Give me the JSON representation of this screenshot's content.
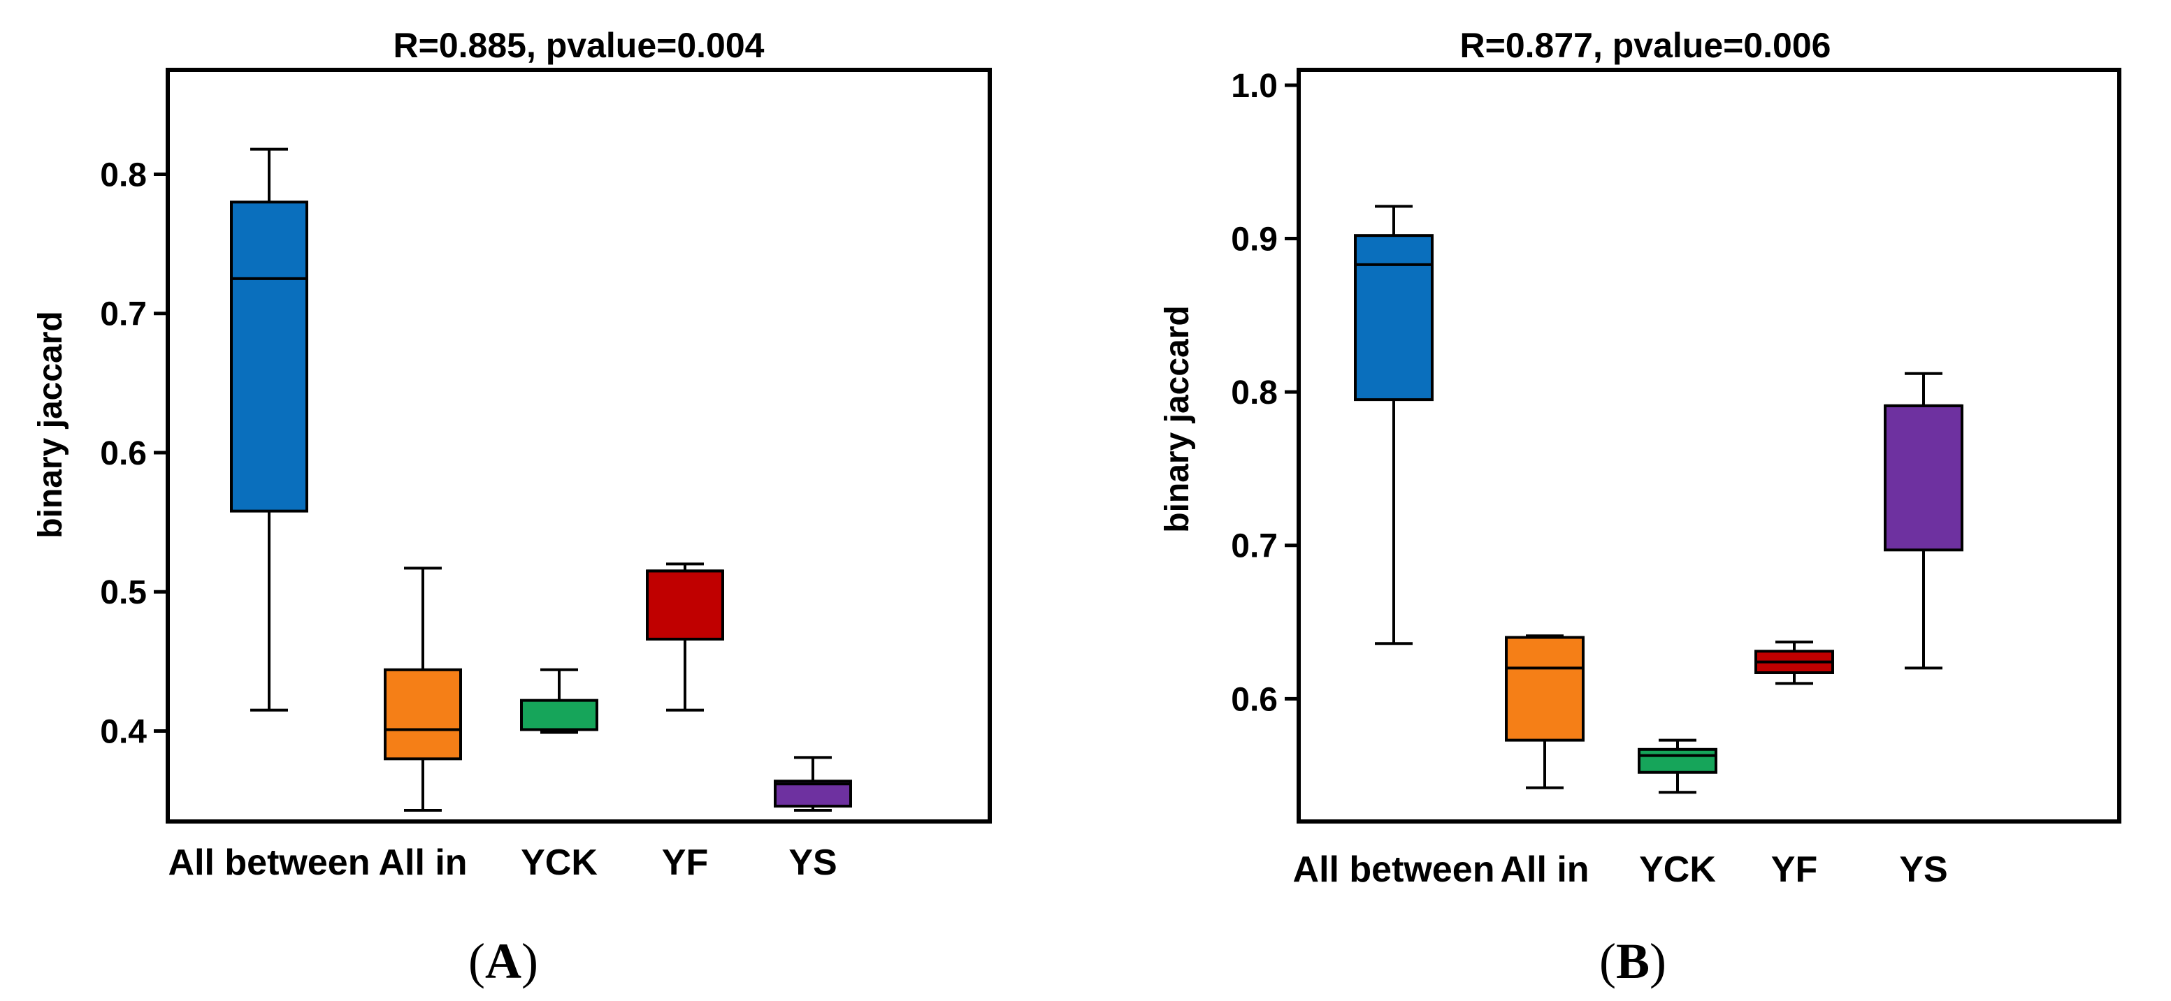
{
  "colors": {
    "All between": "#0a6fbd",
    "All in": "#f57f17",
    "YCK": "#16a55a",
    "YF": "#c00000",
    "YS": "#6e31a0"
  },
  "chart_data": [
    {
      "type": "box",
      "panel_label": "A",
      "title": "R=0.885, pvalue=0.004",
      "xlabel": "",
      "ylabel": "binary jaccard",
      "ylim": [
        0.335,
        0.875
      ],
      "yticks": [
        "0.4",
        "0.5",
        "0.6",
        "0.7",
        "0.8"
      ],
      "categories": [
        "All between",
        "All in",
        "YCK",
        "YF",
        "YS"
      ],
      "boxes": [
        {
          "name": "All between",
          "min": 0.415,
          "q1": 0.558,
          "median": 0.725,
          "q3": 0.78,
          "max": 0.818
        },
        {
          "name": "All in",
          "min": 0.343,
          "q1": 0.38,
          "median": 0.401,
          "q3": 0.444,
          "max": 0.517
        },
        {
          "name": "YCK",
          "min": 0.399,
          "q1": 0.401,
          "median": 0.401,
          "q3": 0.422,
          "max": 0.444
        },
        {
          "name": "YF",
          "min": 0.415,
          "q1": 0.466,
          "median": 0.515,
          "q3": 0.515,
          "max": 0.52
        },
        {
          "name": "YS",
          "min": 0.343,
          "q1": 0.346,
          "median": 0.362,
          "q3": 0.364,
          "max": 0.381
        }
      ]
    },
    {
      "type": "box",
      "panel_label": "B",
      "title": "R=0.877, pvalue=0.006",
      "xlabel": "",
      "ylabel": "binary jaccard",
      "ylim": [
        0.52,
        1.01
      ],
      "yticks": [
        "0.6",
        "0.7",
        "0.8",
        "0.9",
        "1.0"
      ],
      "categories": [
        "All between",
        "All in",
        "YCK",
        "YF",
        "YS"
      ],
      "boxes": [
        {
          "name": "All between",
          "min": 0.636,
          "q1": 0.795,
          "median": 0.883,
          "q3": 0.902,
          "max": 0.921
        },
        {
          "name": "All in",
          "min": 0.542,
          "q1": 0.573,
          "median": 0.62,
          "q3": 0.64,
          "max": 0.641
        },
        {
          "name": "YCK",
          "min": 0.539,
          "q1": 0.552,
          "median": 0.563,
          "q3": 0.567,
          "max": 0.573
        },
        {
          "name": "YF",
          "min": 0.61,
          "q1": 0.617,
          "median": 0.624,
          "q3": 0.631,
          "max": 0.637
        },
        {
          "name": "YS",
          "min": 0.62,
          "q1": 0.697,
          "median": 0.791,
          "q3": 0.791,
          "max": 0.812
        }
      ]
    }
  ]
}
